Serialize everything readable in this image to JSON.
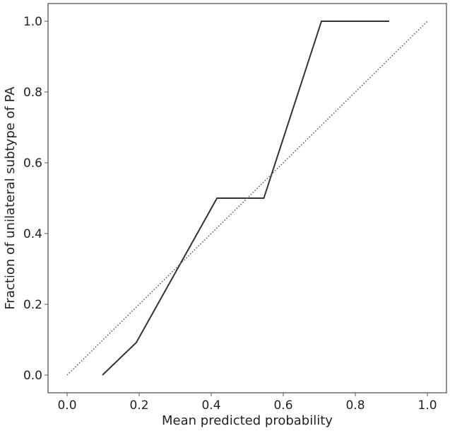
{
  "chart_data": {
    "type": "line",
    "title": "",
    "xlabel": "Mean predicted probability",
    "ylabel": "Fraction of unilateral subtype of PA",
    "xlim": [
      -0.05,
      1.05
    ],
    "ylim": [
      -0.05,
      1.05
    ],
    "xticks": [
      "0.0",
      "0.2",
      "0.4",
      "0.6",
      "0.8",
      "1.0"
    ],
    "yticks": [
      "0.0",
      "0.2",
      "0.4",
      "0.6",
      "0.8",
      "1.0"
    ],
    "grid": false,
    "series": [
      {
        "style": "solid",
        "color": "#333333",
        "x": [
          0.098,
          0.192,
          0.416,
          0.546,
          0.706,
          0.894
        ],
        "y": [
          0.0,
          0.092,
          0.5,
          0.5,
          1.0,
          1.0
        ]
      },
      {
        "style": "dotted",
        "color": "#555555",
        "x": [
          0.0,
          1.0
        ],
        "y": [
          0.0,
          1.0
        ]
      }
    ]
  }
}
